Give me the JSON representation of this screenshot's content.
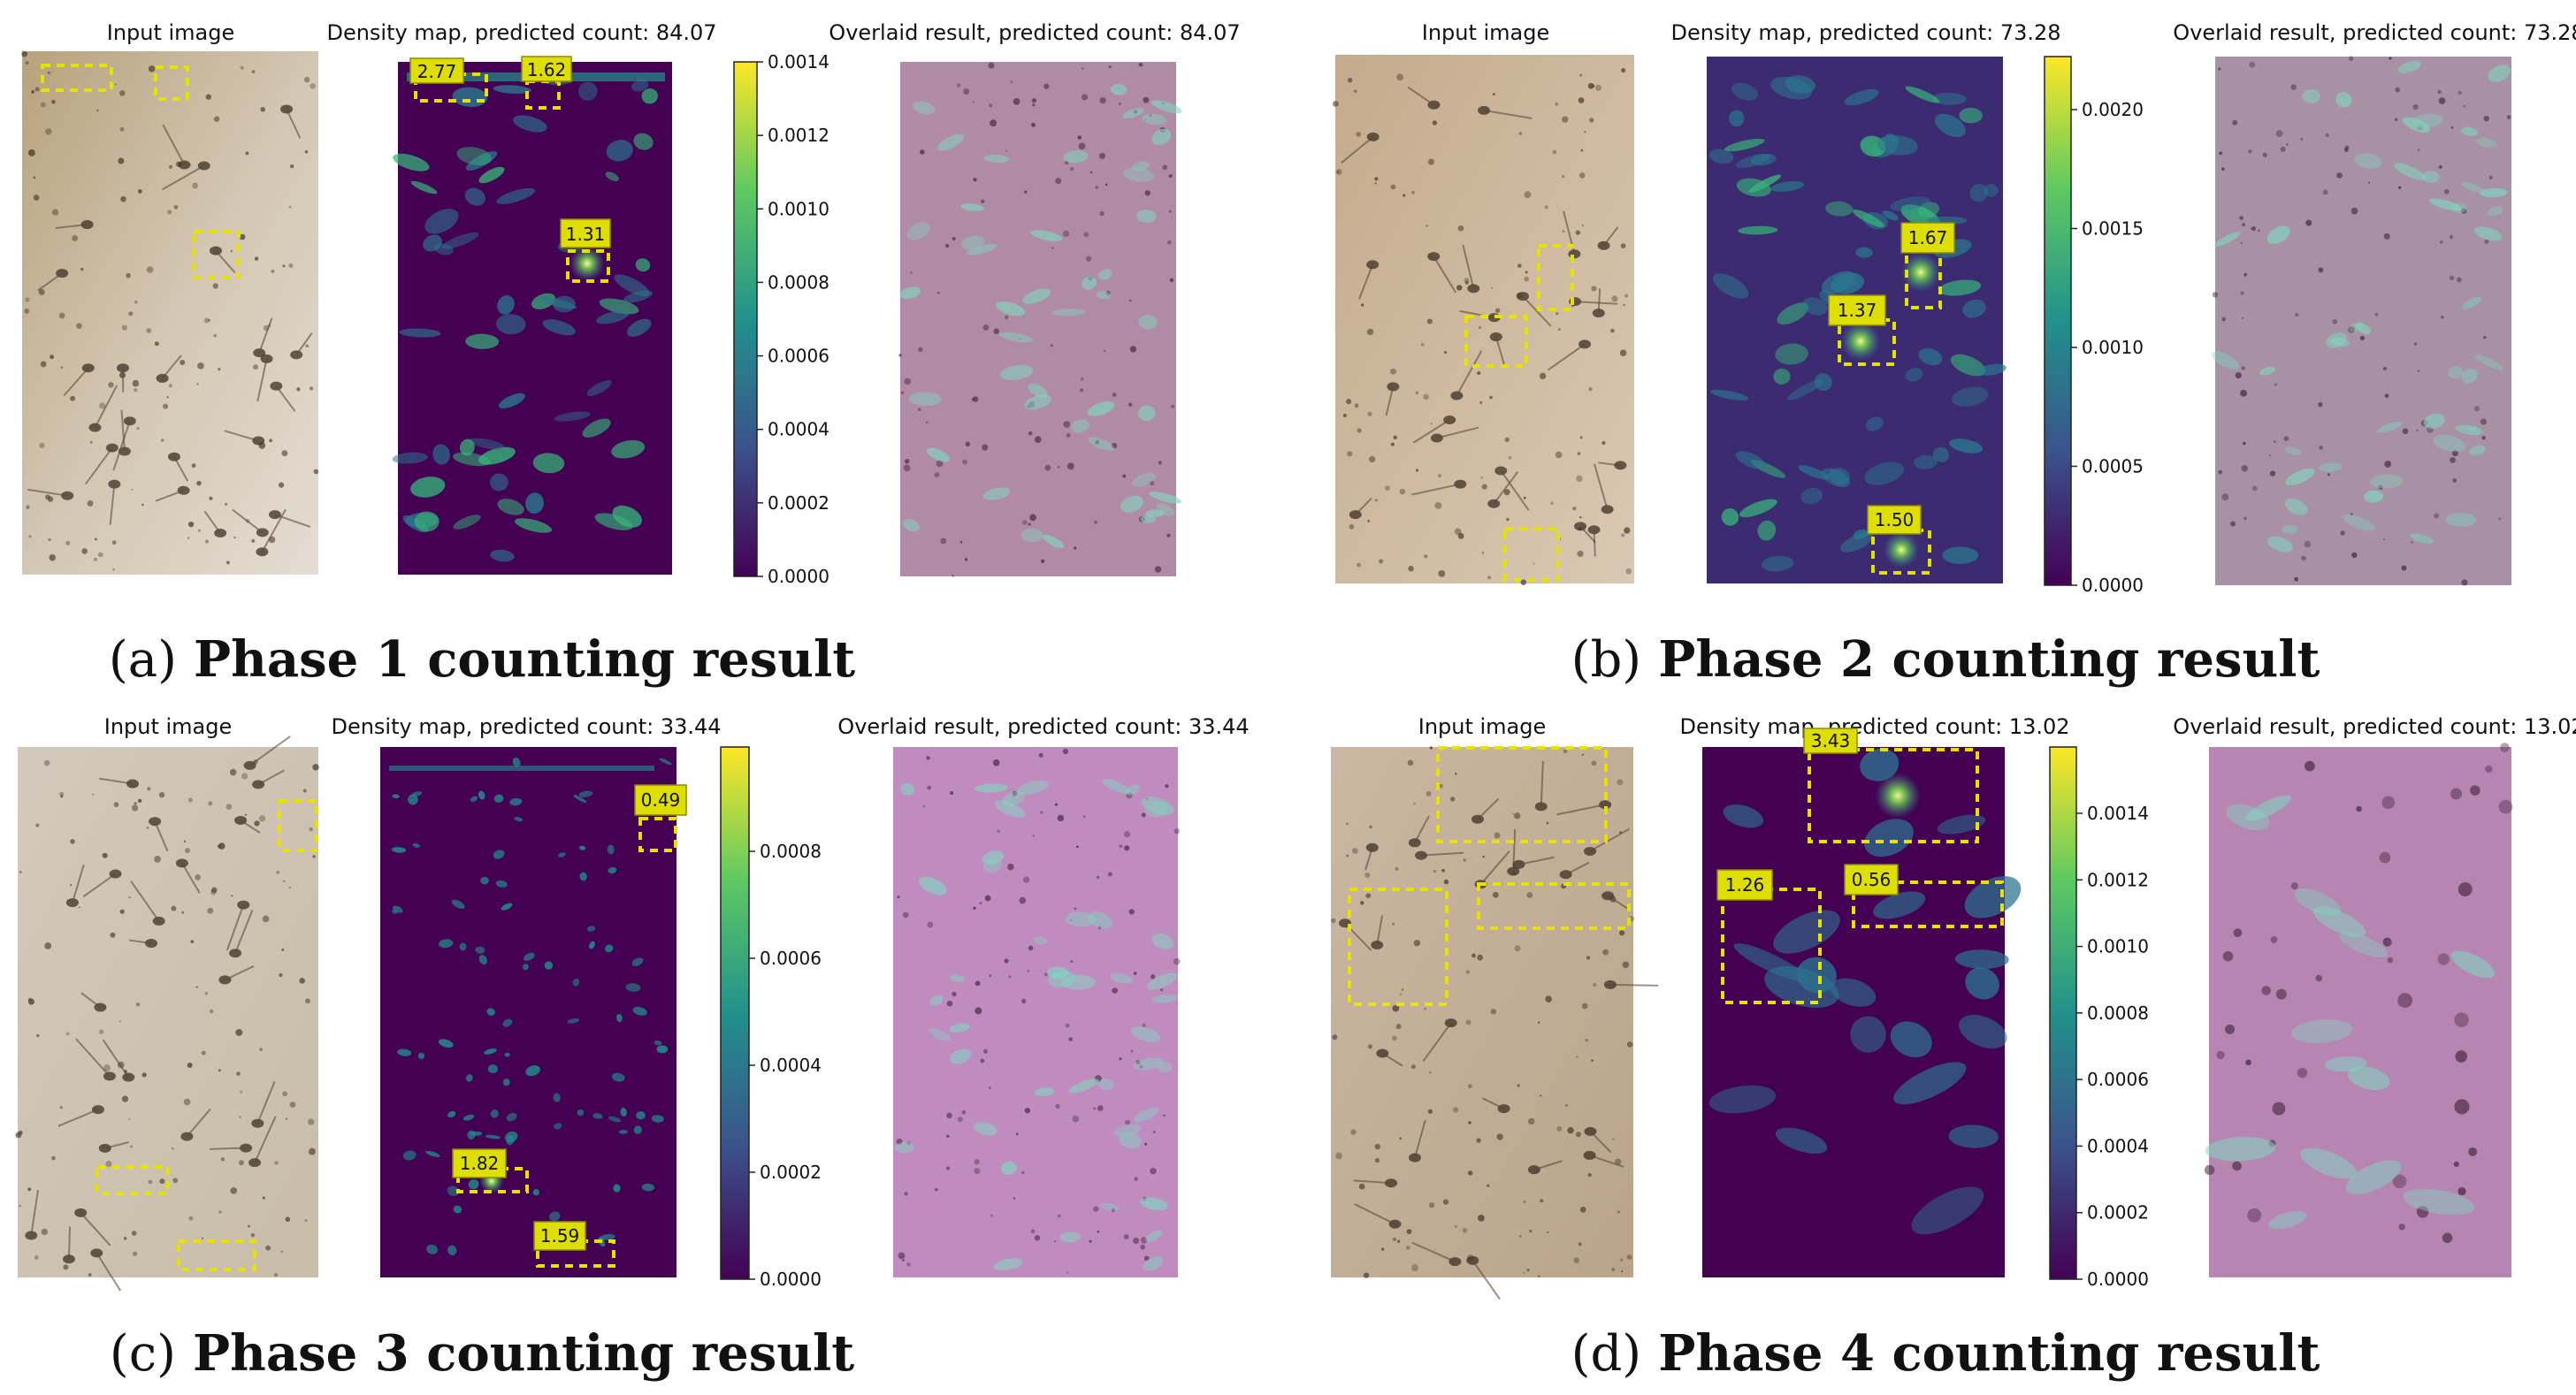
{
  "panels": [
    {
      "id": "a",
      "input_title": "Input image",
      "density_title": "Density map, predicted count: 84.07",
      "overlay_title": "Overlaid result, predicted count: 84.07",
      "colorbar_ticks": [
        "0.0014",
        "0.0012",
        "0.0010",
        "0.0008",
        "0.0006",
        "0.0004",
        "0.0002",
        "0.0000"
      ],
      "labels": [
        "2.77",
        "1.62",
        "1.31"
      ],
      "caption_letter": "(a)",
      "caption_text": "Phase 1 counting result"
    },
    {
      "id": "b",
      "input_title": "Input image",
      "density_title": "Density map, predicted count: 73.28",
      "overlay_title": "Overlaid result, predicted count: 73.28",
      "colorbar_ticks": [
        "0.0020",
        "0.0015",
        "0.0010",
        "0.0005",
        "0.0000"
      ],
      "labels": [
        "1.67",
        "1.37",
        "1.50"
      ],
      "caption_letter": "(b)",
      "caption_text": "Phase 2 counting result"
    },
    {
      "id": "c",
      "input_title": "Input image",
      "density_title": "Density map, predicted count: 33.44",
      "overlay_title": "Overlaid result, predicted count: 33.44",
      "colorbar_ticks": [
        "0.0008",
        "0.0006",
        "0.0004",
        "0.0002",
        "0.0000"
      ],
      "labels": [
        "0.49",
        "1.82",
        "1.59"
      ],
      "caption_letter": "(c)",
      "caption_text": "Phase 3 counting result"
    },
    {
      "id": "d",
      "input_title": "Input image",
      "density_title": "Density map, predicted count: 13.02",
      "overlay_title": "Overlaid result, predicted count: 13.02",
      "colorbar_ticks": [
        "0.0014",
        "0.0012",
        "0.0010",
        "0.0008",
        "0.0006",
        "0.0004",
        "0.0002",
        "0.0000"
      ],
      "labels": [
        "3.43",
        "1.26",
        "0.56"
      ],
      "caption_letter": "(d)",
      "caption_text": "Phase 4 counting result"
    }
  ],
  "colors": {
    "viridis_low": "#440154",
    "viridis_mid": "#21918c",
    "viridis_high": "#fde725",
    "overlay": "#b47bb0",
    "input_bg": "#c9b59a",
    "label_fill": "#dede00"
  }
}
